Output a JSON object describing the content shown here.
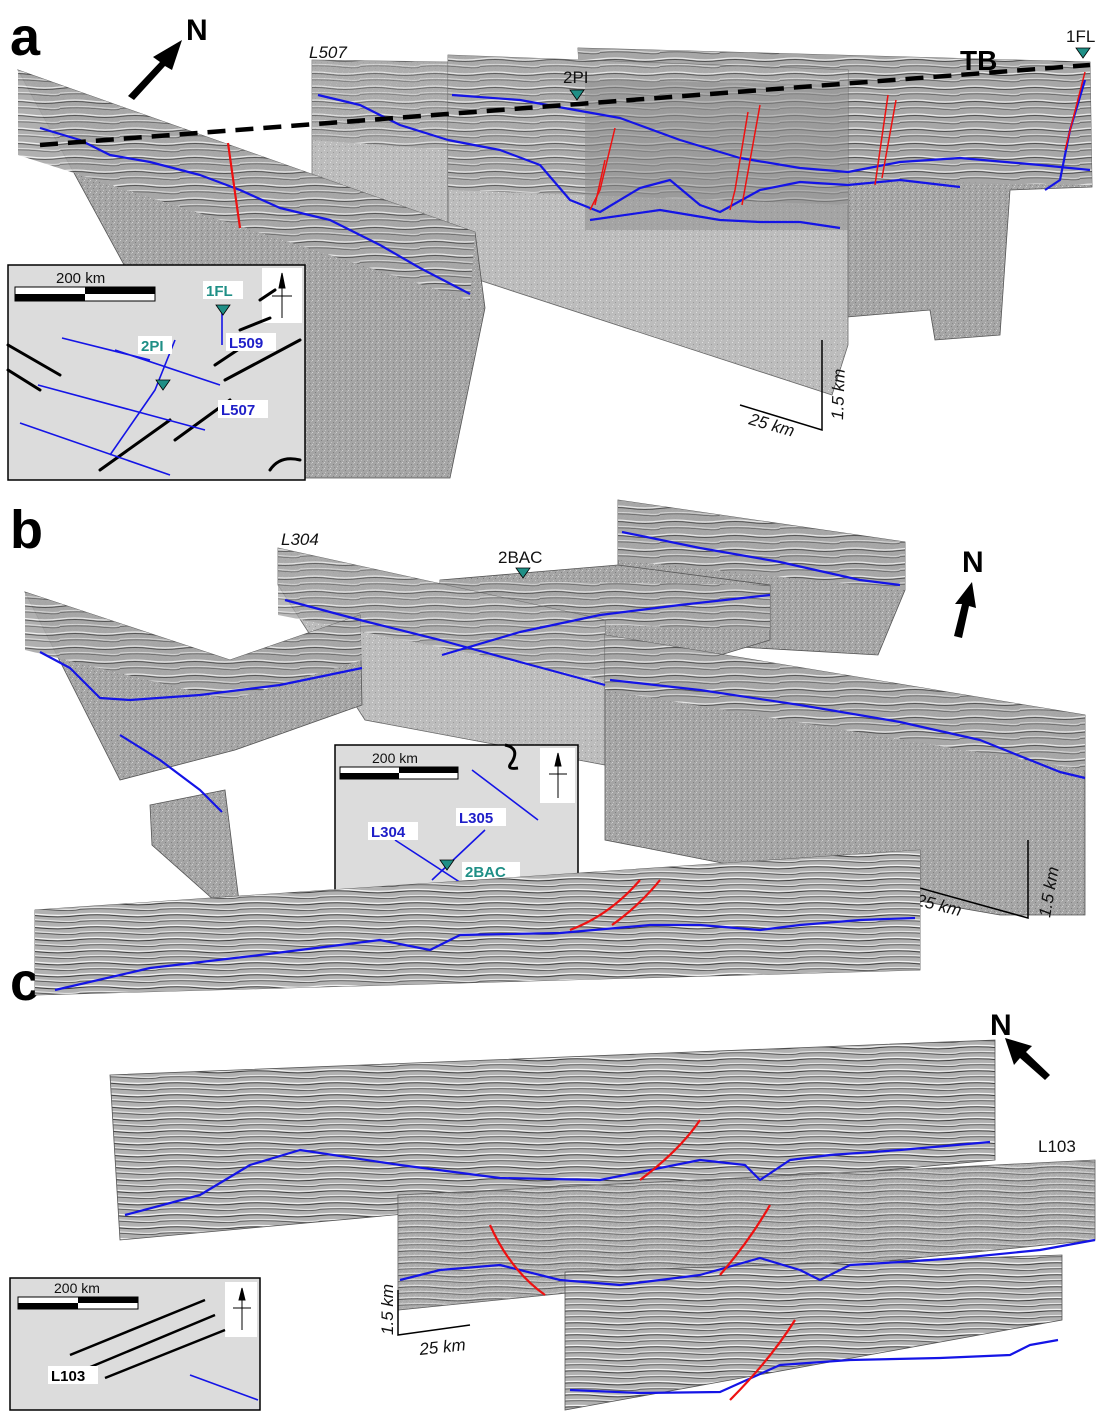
{
  "panels": {
    "a": {
      "label": "a",
      "north": "N",
      "line_label": "L507",
      "well_top_1": "2PI",
      "well_top_2": "1FL",
      "boundary_label": "TB",
      "scale_vertical": "1.5 km",
      "scale_horizontal": "25 km",
      "inset": {
        "scale_label": "200 km",
        "wells": [
          "1FL",
          "2PI"
        ],
        "lines": [
          "L509",
          "L507"
        ]
      }
    },
    "b": {
      "label": "b",
      "north": "N",
      "line_label": "L304",
      "well_top": "2BAC",
      "scale_vertical": "1.5 km",
      "scale_horizontal": "25 km",
      "inset": {
        "scale_label": "200 km",
        "wells": [
          "2BAC"
        ],
        "lines": [
          "L304",
          "L305"
        ]
      }
    },
    "c": {
      "label": "c",
      "north": "N",
      "line_label": "L103",
      "scale_vertical": "1.5 km",
      "scale_horizontal": "25 km",
      "inset": {
        "scale_label": "200 km",
        "lines": [
          "L103"
        ]
      }
    }
  },
  "colors": {
    "horizon": "#1414e6",
    "fault": "#ee1111",
    "well_marker": "#1f8f86",
    "seismic_panel": "#a9a9a9",
    "inset_background": "#dcdcdc"
  },
  "icons": [
    "north-arrow-icon",
    "well-marker-icon",
    "compass-rose-icon"
  ]
}
